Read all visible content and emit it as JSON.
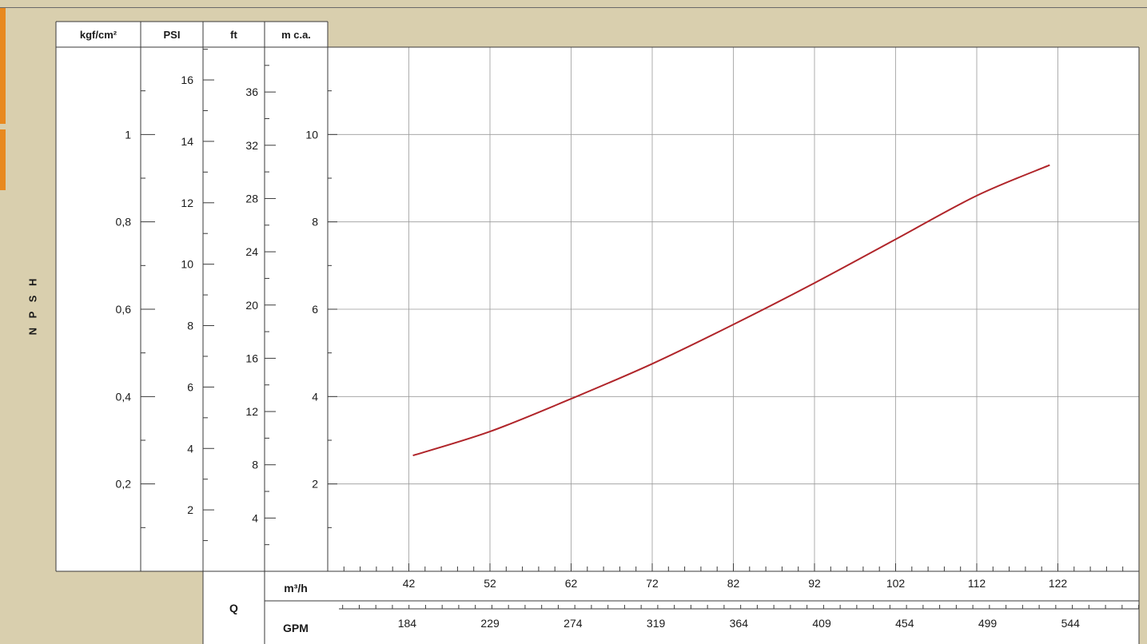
{
  "yaxis_title": "N P S H",
  "units": {
    "kgf": "kgf/cm²",
    "psi": "PSI",
    "ft": "ft",
    "mca": "m c.a.",
    "q": "Q",
    "m3h": "m³/h",
    "gpm": "GPM"
  },
  "colors": {
    "background": "#d9cfae",
    "curve": "#b0252a",
    "grid": "#9a9a9a",
    "accent_tab": "#e8891f"
  },
  "chart_data": {
    "type": "line",
    "title": "",
    "ylabel": "NPSH",
    "grid": true,
    "series": [
      {
        "x_unit": "m³/h",
        "y_unit": "m c.a.",
        "x": [
          42.5,
          52,
          62,
          72,
          82,
          92,
          102,
          112,
          121
        ],
        "y": [
          2.65,
          3.2,
          3.95,
          4.75,
          5.65,
          6.6,
          7.6,
          8.6,
          9.3
        ]
      }
    ],
    "xlim_m3h": [
      32,
      132
    ],
    "ylim_mca": [
      0,
      12
    ],
    "x_ticks_m3h": [
      "42",
      "52",
      "62",
      "72",
      "82",
      "92",
      "102",
      "112",
      "122"
    ],
    "x_ticks_gpm": [
      "184",
      "229",
      "274",
      "319",
      "364",
      "409",
      "454",
      "499",
      "544"
    ],
    "y_ticks_mca": [
      "2",
      "4",
      "6",
      "8",
      "10"
    ],
    "y_ticks_kgf": [
      "0,2",
      "0,4",
      "0,6",
      "0,8",
      "1"
    ],
    "y_ticks_psi": [
      "2",
      "4",
      "6",
      "8",
      "10",
      "12",
      "14",
      "16"
    ],
    "y_ticks_ft": [
      "4",
      "8",
      "12",
      "16",
      "20",
      "24",
      "28",
      "32",
      "36"
    ]
  }
}
